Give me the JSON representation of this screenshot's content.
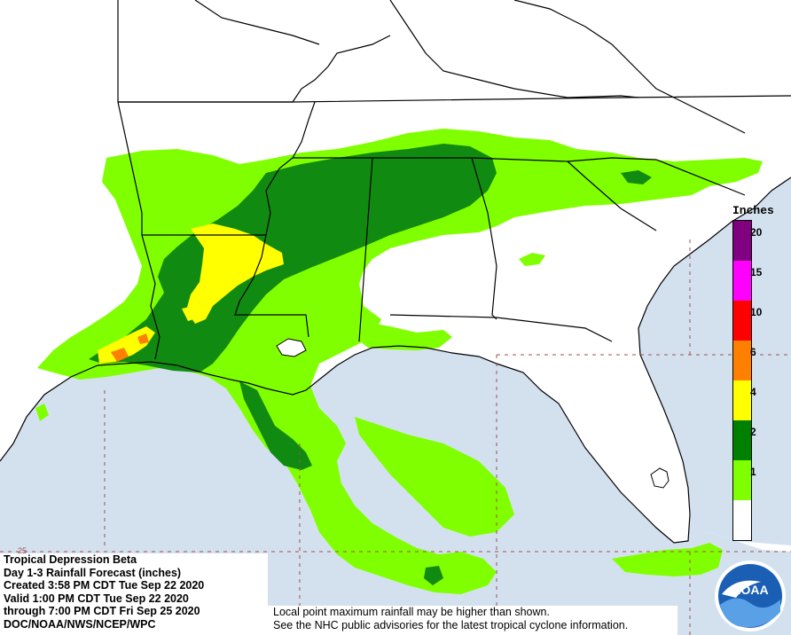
{
  "info": {
    "line1": "Tropical Depression Beta",
    "line2": "Day 1-3 Rainfall Forecast (inches)",
    "line3": "Created 3:58 PM CDT Tue Sep 22 2020",
    "line4": "Valid 1:00 PM CDT Tue Sep 22 2020",
    "line5": "through 7:00 PM CDT Fri Sep 25 2020",
    "line6": "DOC/NOAA/NWS/NCEP/WPC"
  },
  "disclaimer": {
    "line1": "Local point maximum rainfall may be higher than shown.",
    "line2": "See the NHC public advisories for the latest tropical cyclone information."
  },
  "legend": {
    "title": "Inches",
    "items": [
      {
        "label": "20",
        "color": "#800080"
      },
      {
        "label": "15",
        "color": "#ff00ff"
      },
      {
        "label": "10",
        "color": "#ff0000"
      },
      {
        "label": "6",
        "color": "#ff8000"
      },
      {
        "label": "4",
        "color": "#ffff00"
      },
      {
        "label": "2",
        "color": "#008000"
      },
      {
        "label": "1",
        "color": "#80ff00"
      },
      {
        "label": "",
        "color": "#ffffff"
      }
    ]
  },
  "grid_labels": {
    "lat25": "25"
  },
  "logo": {
    "text": "NOAA"
  },
  "colors": {
    "water": "#d3e1ef",
    "land": "#ffffff",
    "light_green": "#80ff00",
    "dark_green": "#118a11",
    "yellow": "#ffff00",
    "orange": "#ff8000"
  }
}
